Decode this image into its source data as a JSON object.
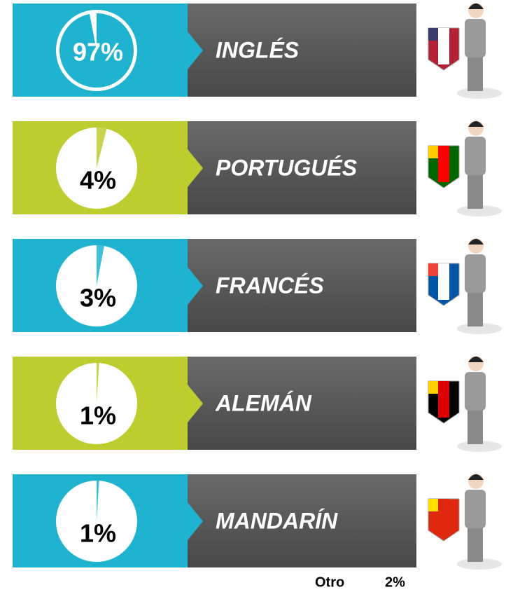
{
  "chart_data": [
    {
      "type": "pie",
      "title": "INGLÉS",
      "values": [
        97
      ],
      "value_labels": [
        "97%"
      ],
      "color": "#1fb3cf"
    },
    {
      "type": "pie",
      "title": "PORTUGUÉS",
      "values": [
        4
      ],
      "value_labels": [
        "4%"
      ],
      "color": "#bccd30"
    },
    {
      "type": "pie",
      "title": "FRANCÉS",
      "values": [
        3
      ],
      "value_labels": [
        "3%"
      ],
      "color": "#1fb3cf"
    },
    {
      "type": "pie",
      "title": "ALEMÁN",
      "values": [
        1
      ],
      "value_labels": [
        "1%"
      ],
      "color": "#bccd30"
    },
    {
      "type": "pie",
      "title": "MANDARÍN",
      "values": [
        1
      ],
      "value_labels": [
        "1%"
      ],
      "color": "#1fb3cf"
    }
  ],
  "footer": {
    "label": "Otro",
    "value_label": "2%"
  }
}
